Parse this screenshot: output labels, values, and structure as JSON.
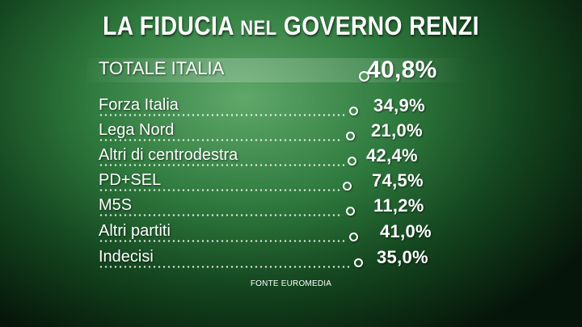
{
  "title": {
    "part1": "LA FIDUCIA",
    "part2": "NEL",
    "part3": "GOVERNO RENZI"
  },
  "source": "FONTE EUROMEDIA",
  "colors": {
    "background": "#2f7a3e",
    "text": "#ffffff"
  },
  "chart_data": {
    "type": "table",
    "title": "LA FIDUCIA NEL GOVERNO RENZI",
    "columns": [
      "",
      ""
    ],
    "rows": [
      {
        "label": "TOTALE ITALIA",
        "value": 40.8,
        "display": "40,8%"
      },
      {
        "label": "Forza Italia",
        "value": 34.9,
        "display": "34,9%"
      },
      {
        "label": "Lega Nord",
        "value": 21.0,
        "display": "21,0%"
      },
      {
        "label": "Altri di centrodestra",
        "value": 42.4,
        "display": "42,4%"
      },
      {
        "label": "PD+SEL",
        "value": 74.5,
        "display": "74,5%"
      },
      {
        "label": "M5S",
        "value": 11.2,
        "display": "11,2%"
      },
      {
        "label": "Altri partiti",
        "value": 41.0,
        "display": "41,0%"
      },
      {
        "label": "Indecisi",
        "value": 35.0,
        "display": "35,0%"
      }
    ]
  }
}
